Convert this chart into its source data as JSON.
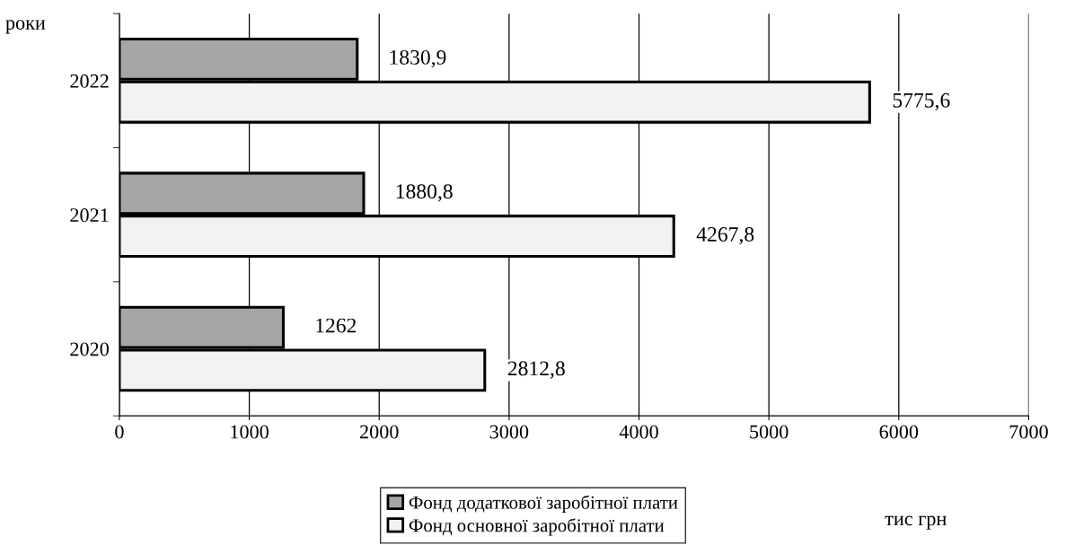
{
  "chart_data": {
    "type": "bar",
    "orientation": "horizontal",
    "categories": [
      "2022",
      "2021",
      "2020"
    ],
    "series": [
      {
        "name": "Фонд додаткової заробітної плати",
        "color": "#a6a6a6",
        "values": [
          1830.9,
          1880.8,
          1262
        ],
        "value_labels": [
          "1830,9",
          "1880,8",
          "1262"
        ]
      },
      {
        "name": "Фонд основної заробітної плати",
        "color": "#f2f2f2",
        "values": [
          5775.6,
          4267.8,
          2812.8
        ],
        "value_labels": [
          "5775,6",
          "4267,8",
          "2812,8"
        ]
      }
    ],
    "xlim": [
      0,
      7000
    ],
    "xticks": [
      0,
      1000,
      2000,
      3000,
      4000,
      5000,
      6000,
      7000
    ],
    "ylabel": "роки",
    "xlabel": "тис грн",
    "grid": "x",
    "legend": "bottom"
  }
}
